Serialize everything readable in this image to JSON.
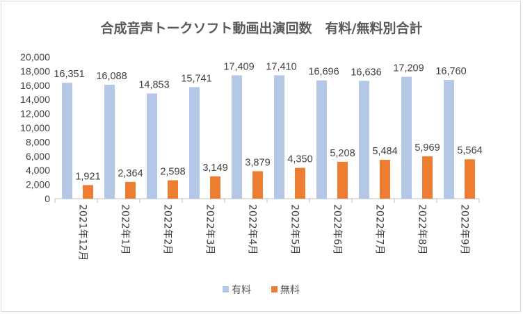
{
  "chart_data": {
    "type": "bar",
    "title": "合成音声トークソフト動画出演回数　有料/無料別合計",
    "categories": [
      "2021年12月",
      "2022年1月",
      "2022年2月",
      "2022年3月",
      "2022年4月",
      "2022年5月",
      "2022年6月",
      "2022年7月",
      "2022年8月",
      "2022年9月"
    ],
    "series": [
      {
        "name": "有料",
        "values": [
          16351,
          16088,
          14853,
          15741,
          17409,
          17410,
          16696,
          16636,
          17209,
          16760
        ],
        "color": "#b4c7e7"
      },
      {
        "name": "無料",
        "values": [
          1921,
          2364,
          2598,
          3149,
          3879,
          4350,
          5208,
          5484,
          5969,
          5564
        ],
        "color": "#ed7d31"
      }
    ],
    "ylim": [
      0,
      20000
    ],
    "ytick_step": 2000,
    "grid": false,
    "legend_position": "bottom",
    "data_labels": true
  }
}
